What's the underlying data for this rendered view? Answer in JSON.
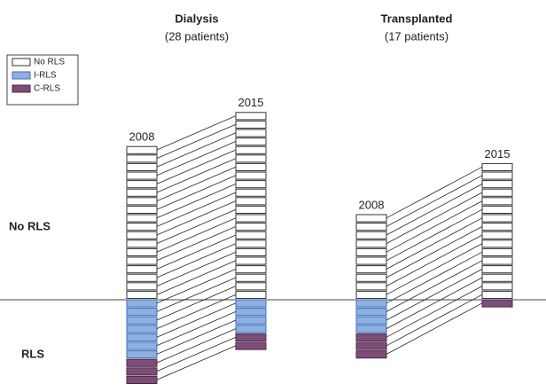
{
  "chart_data": {
    "type": "patient-flow",
    "legend": [
      {
        "label": "No RLS",
        "color": "#ffffff"
      },
      {
        "label": "I-RLS",
        "color": "#8fb0de"
      },
      {
        "label": "C-RLS",
        "color": "#7d4d78"
      }
    ],
    "row_labels": [
      "No RLS",
      "RLS"
    ],
    "groups": [
      {
        "title": "Dialysis",
        "subtitle": "(28 patients)",
        "years": [
          {
            "label": "2008",
            "counts": [
              18,
              7,
              3
            ]
          },
          {
            "label": "2015",
            "counts": [
              22,
              4,
              2
            ]
          }
        ]
      },
      {
        "title": "Transplanted",
        "subtitle": "(17 patients)",
        "years": [
          {
            "label": "2008",
            "counts": [
              10,
              4,
              3
            ]
          },
          {
            "label": "2015",
            "counts": [
              16,
              0,
              1
            ]
          }
        ]
      }
    ]
  }
}
